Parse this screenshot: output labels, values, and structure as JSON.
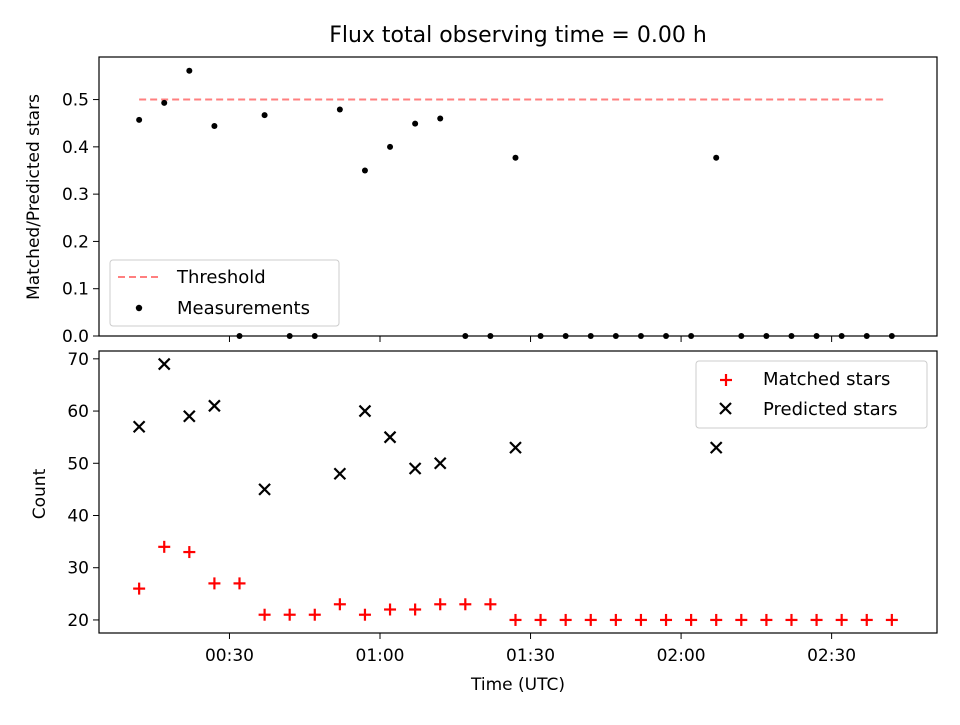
{
  "chart_data": [
    {
      "type": "scatter",
      "title": "Flux total observing time = 0.00 h",
      "xlabel": "",
      "ylabel": "Matched/Predicted stars",
      "xlim": [
        "00:04",
        "02:51"
      ],
      "ylim": [
        0,
        0.59
      ],
      "yticks": [
        0.0,
        0.1,
        0.2,
        0.3,
        0.4,
        0.5
      ],
      "ytick_labels": [
        "0.0",
        "0.1",
        "0.2",
        "0.3",
        "0.4",
        "0.5"
      ],
      "grid": false,
      "legend": "lower-left",
      "series": [
        {
          "name": "Threshold",
          "kind": "line",
          "style": "dashed",
          "color": "#ff7f7f",
          "x": [
            "00:12",
            "02:41"
          ],
          "y": [
            0.5,
            0.5
          ]
        },
        {
          "name": "Measurements",
          "kind": "scatter",
          "marker": "dot",
          "color": "#000000",
          "x": [
            "00:12",
            "00:17",
            "00:22",
            "00:27",
            "00:32",
            "00:37",
            "00:42",
            "00:47",
            "00:52",
            "00:57",
            "01:02",
            "01:07",
            "01:12",
            "01:17",
            "01:22",
            "01:27",
            "01:32",
            "01:37",
            "01:42",
            "01:47",
            "01:52",
            "01:57",
            "02:02",
            "02:07",
            "02:12",
            "02:17",
            "02:22",
            "02:27",
            "02:32",
            "02:37",
            "02:42"
          ],
          "y": [
            0.457,
            0.493,
            0.561,
            0.444,
            0.0,
            0.467,
            0.0,
            0.0,
            0.479,
            0.35,
            0.4,
            0.449,
            0.46,
            0.0,
            0.0,
            0.377,
            0.0,
            0.0,
            0.0,
            0.0,
            0.0,
            0.0,
            0.0,
            0.377,
            0.0,
            0.0,
            0.0,
            0.0,
            0.0,
            0.0,
            0.0
          ]
        }
      ]
    },
    {
      "type": "scatter",
      "title": "",
      "xlabel": "Time (UTC)",
      "ylabel": "Count",
      "xlim": [
        "00:04",
        "02:51"
      ],
      "ylim": [
        17.5,
        71.5
      ],
      "xticks": [
        "00:30",
        "01:00",
        "01:30",
        "02:00",
        "02:30"
      ],
      "yticks": [
        20,
        30,
        40,
        50,
        60,
        70
      ],
      "ytick_labels": [
        "20",
        "30",
        "40",
        "50",
        "60",
        "70"
      ],
      "grid": false,
      "legend": "upper-right",
      "series": [
        {
          "name": "Matched stars",
          "marker": "plus",
          "color": "#ff0000",
          "x": [
            "00:12",
            "00:17",
            "00:22",
            "00:27",
            "00:32",
            "00:37",
            "00:42",
            "00:47",
            "00:52",
            "00:57",
            "01:02",
            "01:07",
            "01:12",
            "01:17",
            "01:22",
            "01:27",
            "01:32",
            "01:37",
            "01:42",
            "01:47",
            "01:52",
            "01:57",
            "02:02",
            "02:07",
            "02:12",
            "02:17",
            "02:22",
            "02:27",
            "02:32",
            "02:37",
            "02:42"
          ],
          "y": [
            26,
            34,
            33,
            27,
            27,
            21,
            21,
            21,
            23,
            21,
            22,
            22,
            23,
            23,
            23,
            20,
            20,
            20,
            20,
            20,
            20,
            20,
            20,
            20,
            20,
            20,
            20,
            20,
            20,
            20,
            20
          ]
        },
        {
          "name": "Predicted stars",
          "marker": "x",
          "color": "#000000",
          "x": [
            "00:12",
            "00:17",
            "00:22",
            "00:27",
            "00:37",
            "00:52",
            "00:57",
            "01:02",
            "01:07",
            "01:12",
            "01:27",
            "02:07"
          ],
          "y": [
            57,
            69,
            59,
            61,
            45,
            48,
            60,
            55,
            49,
            50,
            53,
            53
          ]
        }
      ]
    }
  ]
}
